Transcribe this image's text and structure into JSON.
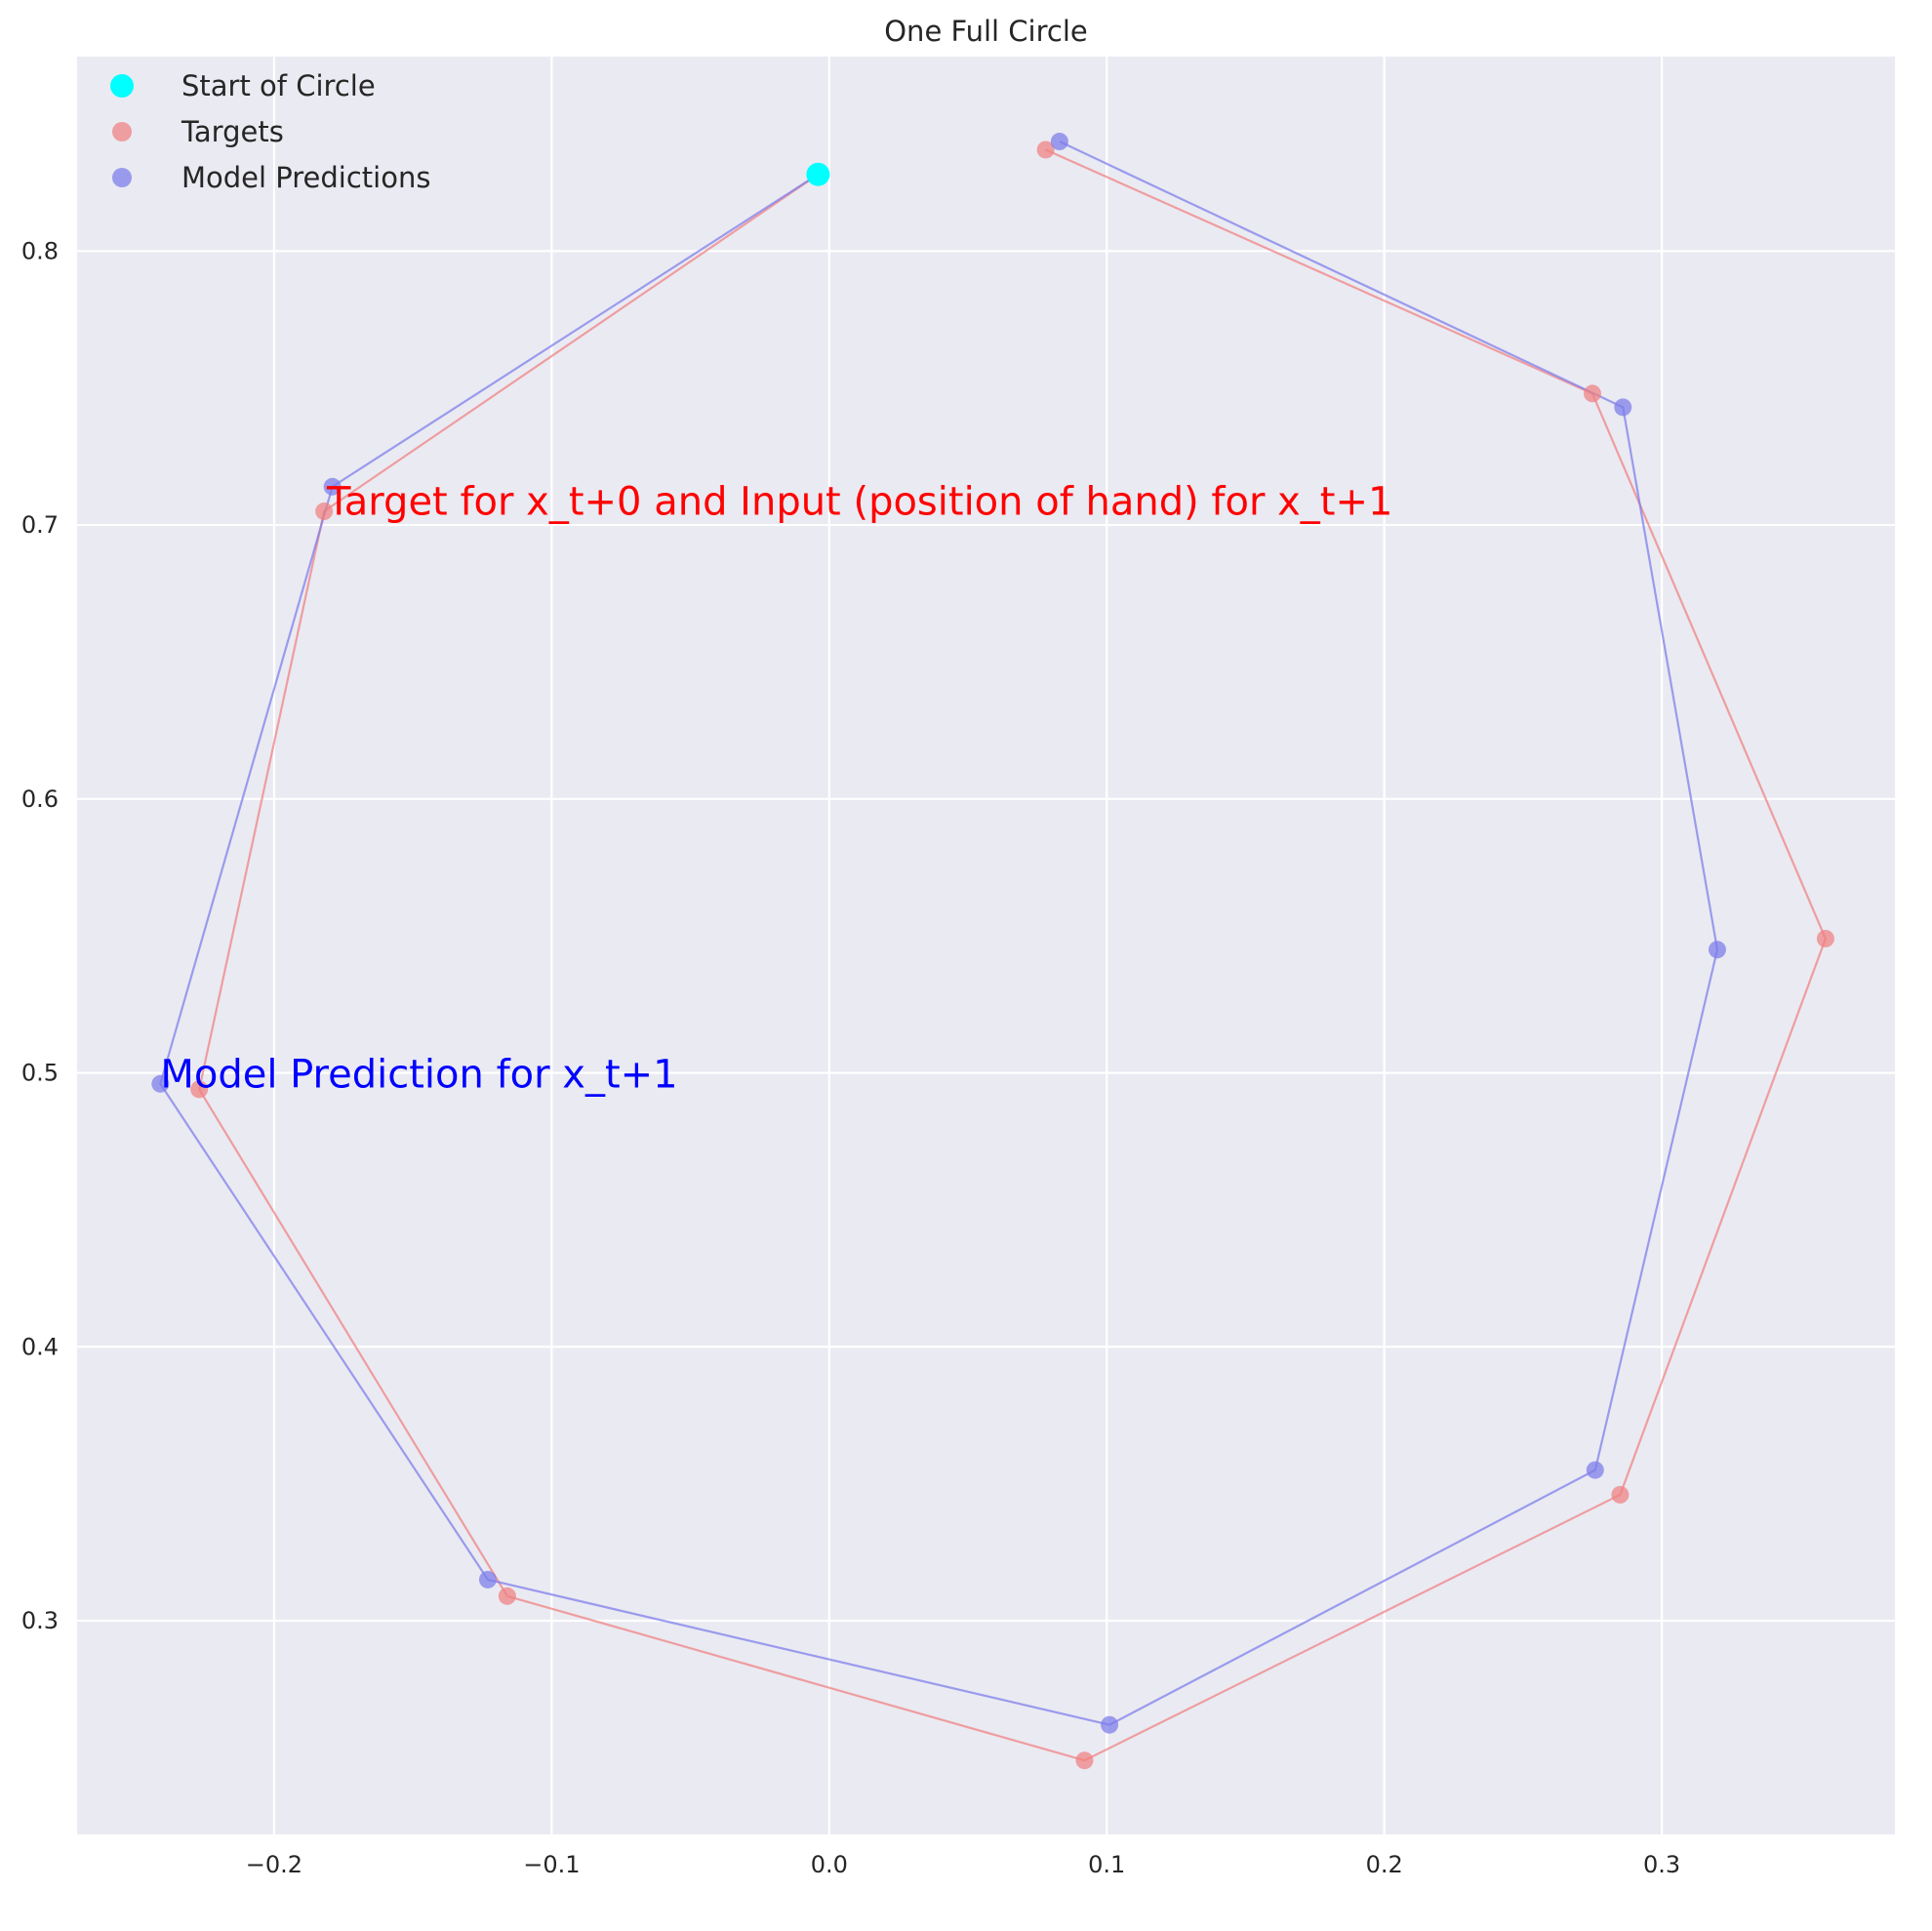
{
  "chart_data": {
    "type": "scatter",
    "title": "One Full Circle",
    "xlabel": "",
    "ylabel": "",
    "xlim": [
      -0.271,
      0.384
    ],
    "ylim": [
      0.222,
      0.871
    ],
    "xticks": [
      -0.2,
      -0.1,
      0.0,
      0.1,
      0.2,
      0.3
    ],
    "xtick_labels": [
      "−0.2",
      "−0.1",
      "0.0",
      "0.1",
      "0.2",
      "0.3"
    ],
    "yticks": [
      0.3,
      0.4,
      0.5,
      0.6,
      0.7,
      0.8
    ],
    "ytick_labels": [
      "0.3",
      "0.4",
      "0.5",
      "0.6",
      "0.7",
      "0.8"
    ],
    "grid": true,
    "legend": "top-left",
    "series": [
      {
        "name": "Start of Circle",
        "color": "#00ffff",
        "connected": false,
        "x": [
          -0.004
        ],
        "y": [
          0.828
        ]
      },
      {
        "name": "Targets",
        "color": "#f08080",
        "connected": true,
        "x": [
          -0.004,
          -0.182,
          -0.227,
          -0.116,
          0.092,
          0.285,
          0.359,
          0.275,
          0.078
        ],
        "y": [
          0.828,
          0.705,
          0.494,
          0.309,
          0.249,
          0.346,
          0.549,
          0.748,
          0.837
        ]
      },
      {
        "name": "Model Predictions",
        "color": "#7b7bea",
        "connected": true,
        "x": [
          -0.004,
          -0.179,
          -0.241,
          -0.123,
          0.101,
          0.276,
          0.32,
          0.286,
          0.083
        ],
        "y": [
          0.828,
          0.714,
          0.496,
          0.315,
          0.262,
          0.355,
          0.545,
          0.743,
          0.84
        ]
      }
    ],
    "annotations": [
      {
        "text": "Target for x_t+0 and Input (position of hand) for x_t+1",
        "x": -0.181,
        "y": 0.703,
        "color": "#ff0000"
      },
      {
        "text": "Model Prediction for x_t+1",
        "x": -0.241,
        "y": 0.494,
        "color": "#0000ff"
      }
    ]
  }
}
